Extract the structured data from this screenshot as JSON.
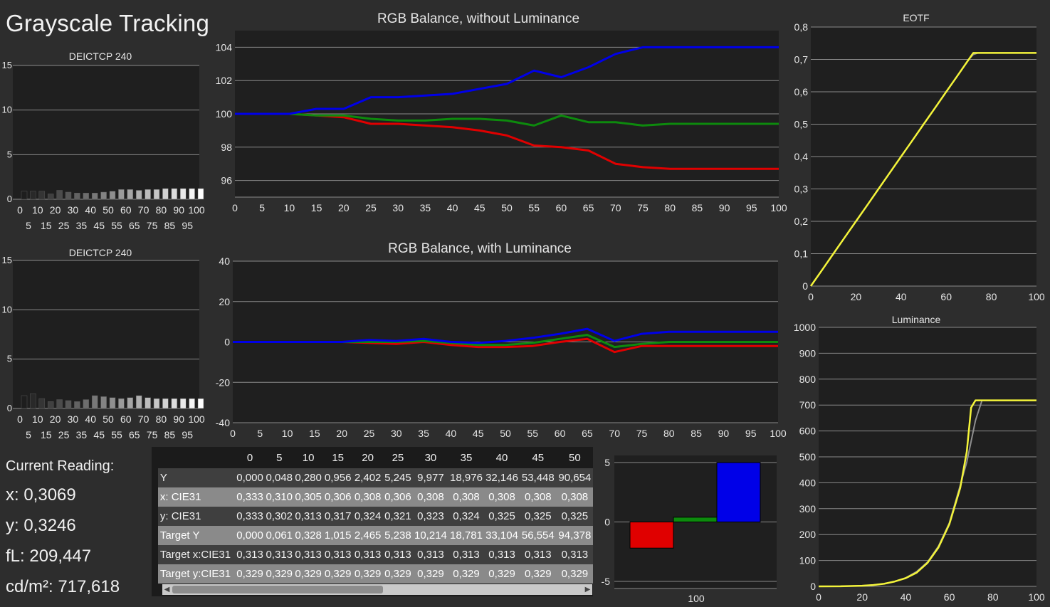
{
  "page_title": "Grayscale Tracking",
  "colors": {
    "red": "#e00000",
    "green": "#0d8a0d",
    "blue": "#0000e8",
    "yellow": "#f4f43a",
    "gray": "#8e8e8e",
    "plot_bg": "#1f1f1f",
    "grid": "#8a8a8a"
  },
  "readout": {
    "heading": "Current Reading:",
    "x": "x: 0,3069",
    "y": "y: 0,3246",
    "fl": "fL: 209,447",
    "cd": "cd/m²: 717,618"
  },
  "table": {
    "headers": [
      "",
      "0",
      "5",
      "10",
      "15",
      "20",
      "25",
      "30",
      "35",
      "40",
      "45",
      "50"
    ],
    "rows": [
      {
        "label": "Y",
        "values": [
          "0,000",
          "0,048",
          "0,280",
          "0,956",
          "2,402",
          "5,245",
          "9,977",
          "18,976",
          "32,146",
          "53,448",
          "90,654"
        ]
      },
      {
        "label": "x: CIE31",
        "values": [
          "0,333",
          "0,310",
          "0,305",
          "0,306",
          "0,308",
          "0,306",
          "0,308",
          "0,308",
          "0,308",
          "0,308",
          "0,308"
        ]
      },
      {
        "label": "y: CIE31",
        "values": [
          "0,333",
          "0,302",
          "0,313",
          "0,317",
          "0,324",
          "0,321",
          "0,323",
          "0,324",
          "0,325",
          "0,325",
          "0,325"
        ]
      },
      {
        "label": "Target Y",
        "values": [
          "0,000",
          "0,061",
          "0,328",
          "1,015",
          "2,465",
          "5,238",
          "10,214",
          "18,781",
          "33,104",
          "56,554",
          "94,378"
        ]
      },
      {
        "label": "Target x:CIE31",
        "values": [
          "0,313",
          "0,313",
          "0,313",
          "0,313",
          "0,313",
          "0,313",
          "0,313",
          "0,313",
          "0,313",
          "0,313",
          "0,313"
        ]
      },
      {
        "label": "Target y:CIE31",
        "values": [
          "0,329",
          "0,329",
          "0,329",
          "0,329",
          "0,329",
          "0,329",
          "0,329",
          "0,329",
          "0,329",
          "0,329",
          "0,329"
        ]
      }
    ]
  },
  "chart_data": [
    {
      "id": "deltae1",
      "type": "bar",
      "title": "DEICTCP 240",
      "categories": [
        0,
        5,
        10,
        15,
        20,
        25,
        30,
        35,
        40,
        45,
        50,
        55,
        60,
        65,
        70,
        75,
        80,
        85,
        90,
        95,
        100
      ],
      "values": [
        0.9,
        0.9,
        0.9,
        0.6,
        1.0,
        0.8,
        0.7,
        0.7,
        0.7,
        0.8,
        0.9,
        1.1,
        1.1,
        1.0,
        1.1,
        1.1,
        1.2,
        1.2,
        1.2,
        1.2,
        1.2
      ],
      "ylim": [
        0,
        15
      ],
      "yticks": [
        0,
        5,
        10,
        15
      ],
      "xticks_top": [
        "0",
        "10",
        "20",
        "30",
        "40",
        "50",
        "60",
        "70",
        "80",
        "90",
        "100"
      ],
      "xticks_bottom": [
        "5",
        "15",
        "25",
        "35",
        "45",
        "55",
        "65",
        "75",
        "85",
        "95"
      ]
    },
    {
      "id": "deltae2",
      "type": "bar",
      "title": "DEICTCP 240",
      "categories": [
        0,
        5,
        10,
        15,
        20,
        25,
        30,
        35,
        40,
        45,
        50,
        55,
        60,
        65,
        70,
        75,
        80,
        85,
        90,
        95,
        100
      ],
      "values": [
        1.3,
        1.5,
        1.0,
        0.7,
        0.9,
        0.8,
        0.7,
        0.9,
        1.3,
        1.2,
        1.1,
        1.0,
        1.1,
        1.3,
        1.1,
        1.0,
        1.0,
        1.0,
        1.0,
        1.0,
        1.0
      ],
      "ylim": [
        0,
        15
      ],
      "yticks": [
        0,
        5,
        10,
        15
      ],
      "xticks_top": [
        "0",
        "10",
        "20",
        "30",
        "40",
        "50",
        "60",
        "70",
        "80",
        "90",
        "100"
      ],
      "xticks_bottom": [
        "5",
        "15",
        "25",
        "35",
        "45",
        "55",
        "65",
        "75",
        "85",
        "95"
      ]
    },
    {
      "id": "rgb1",
      "type": "line",
      "title": "RGB Balance, without Luminance",
      "x": [
        0,
        5,
        10,
        15,
        20,
        25,
        30,
        35,
        40,
        45,
        50,
        55,
        60,
        65,
        70,
        75,
        80,
        85,
        90,
        95,
        100
      ],
      "xticks": [
        "0",
        "5",
        "10",
        "15",
        "20",
        "25",
        "30",
        "35",
        "40",
        "45",
        "50",
        "55",
        "60",
        "65",
        "70",
        "75",
        "80",
        "85",
        "90",
        "95",
        "100"
      ],
      "ylim": [
        95,
        105
      ],
      "yticks": [
        "96",
        "98",
        "100",
        "102",
        "104"
      ],
      "series": [
        {
          "color": "red",
          "values": [
            100,
            100,
            100,
            99.9,
            99.8,
            99.4,
            99.4,
            99.3,
            99.2,
            99.0,
            98.7,
            98.1,
            98.0,
            97.8,
            97.0,
            96.8,
            96.7,
            96.7,
            96.7,
            96.7,
            96.7
          ]
        },
        {
          "color": "green",
          "values": [
            100,
            100,
            100,
            99.9,
            99.9,
            99.7,
            99.6,
            99.6,
            99.7,
            99.7,
            99.6,
            99.3,
            99.9,
            99.5,
            99.5,
            99.3,
            99.4,
            99.4,
            99.4,
            99.4,
            99.4
          ]
        },
        {
          "color": "blue",
          "values": [
            100,
            100,
            100,
            100.3,
            100.3,
            101.0,
            101.0,
            101.1,
            101.2,
            101.5,
            101.8,
            102.6,
            102.2,
            102.8,
            103.6,
            104.0,
            104.0,
            104.0,
            104.0,
            104.0,
            104.0
          ]
        }
      ]
    },
    {
      "id": "rgb2",
      "type": "line",
      "title": "RGB Balance, with Luminance",
      "x": [
        0,
        5,
        10,
        15,
        20,
        25,
        30,
        35,
        40,
        45,
        50,
        55,
        60,
        65,
        70,
        75,
        80,
        85,
        90,
        95,
        100
      ],
      "xticks": [
        "0",
        "5",
        "10",
        "15",
        "20",
        "25",
        "30",
        "35",
        "40",
        "45",
        "50",
        "55",
        "60",
        "65",
        "70",
        "75",
        "80",
        "85",
        "90",
        "95",
        "100"
      ],
      "ylim": [
        -40,
        40
      ],
      "yticks": [
        "-40",
        "-20",
        "0",
        "20",
        "40"
      ],
      "series": [
        {
          "color": "red",
          "values": [
            0,
            0,
            0,
            0,
            0,
            -0.5,
            -1,
            0,
            -1.5,
            -2.5,
            -2.5,
            -2,
            0,
            1.5,
            -5,
            -2,
            -2,
            -2,
            -2,
            -2,
            -2
          ]
        },
        {
          "color": "green",
          "values": [
            0,
            0,
            0,
            0,
            0,
            0,
            0,
            0.5,
            -0.5,
            -1.5,
            -1.5,
            -0.5,
            1.5,
            3.5,
            -2.5,
            -1,
            0,
            0,
            0,
            0,
            0
          ]
        },
        {
          "color": "blue",
          "values": [
            0,
            0,
            0,
            0,
            0,
            1,
            0.5,
            1.5,
            0,
            -0.5,
            0.5,
            2,
            4,
            6.5,
            0.5,
            4,
            5,
            5,
            5,
            5,
            5
          ]
        }
      ]
    },
    {
      "id": "eotf",
      "type": "line",
      "title": "EOTF",
      "x": [
        0,
        5,
        10,
        15,
        20,
        25,
        30,
        35,
        40,
        45,
        50,
        55,
        60,
        65,
        70,
        72,
        74,
        80,
        90,
        100
      ],
      "xlim": [
        0,
        100
      ],
      "ylim": [
        0,
        0.8
      ],
      "xticks": [
        "0",
        "20",
        "40",
        "60",
        "80",
        "100"
      ],
      "yticks": [
        "0",
        "0,1",
        "0,2",
        "0,3",
        "0,4",
        "0,5",
        "0,6",
        "0,7",
        "0,8"
      ],
      "series": [
        {
          "color": "yellow",
          "values": [
            0,
            0.05,
            0.1,
            0.15,
            0.2,
            0.25,
            0.3,
            0.35,
            0.4,
            0.45,
            0.5,
            0.55,
            0.6,
            0.65,
            0.7,
            0.72,
            0.72,
            0.72,
            0.72,
            0.72
          ]
        },
        {
          "color": "gray",
          "values": [
            0,
            0.05,
            0.1,
            0.15,
            0.2,
            0.25,
            0.3,
            0.35,
            0.4,
            0.45,
            0.5,
            0.55,
            0.6,
            0.65,
            0.7,
            0.715,
            0.72,
            0.72,
            0.72,
            0.72
          ]
        }
      ]
    },
    {
      "id": "lum",
      "type": "line",
      "title": "Luminance",
      "x": [
        0,
        10,
        20,
        25,
        30,
        35,
        40,
        45,
        50,
        55,
        60,
        65,
        68,
        70,
        72,
        75,
        80,
        90,
        100
      ],
      "xlim": [
        0,
        100
      ],
      "ylim": [
        0,
        1000
      ],
      "xticks": [
        "0",
        "20",
        "40",
        "60",
        "80",
        "100"
      ],
      "yticks": [
        "0",
        "100",
        "200",
        "300",
        "400",
        "500",
        "600",
        "700",
        "800",
        "900",
        "1000"
      ],
      "series": [
        {
          "color": "yellow",
          "values": [
            0,
            0.3,
            2.4,
            5.2,
            10,
            19,
            32,
            53,
            91,
            150,
            240,
            380,
            520,
            690,
            718,
            718,
            718,
            718,
            718
          ]
        },
        {
          "color": "gray",
          "values": [
            0,
            0.3,
            2.5,
            5.2,
            10,
            19,
            33,
            57,
            94,
            155,
            245,
            390,
            480,
            560,
            640,
            718,
            718,
            718,
            718
          ]
        }
      ]
    },
    {
      "id": "rgbbar",
      "type": "bar",
      "title": "",
      "categories": [
        "R",
        "G",
        "B"
      ],
      "values": [
        -2.2,
        0.4,
        5.0
      ],
      "ylim": [
        -5.6,
        5.6
      ],
      "yticks": [
        "-5",
        "0",
        "5"
      ],
      "xlabel": "100"
    }
  ]
}
